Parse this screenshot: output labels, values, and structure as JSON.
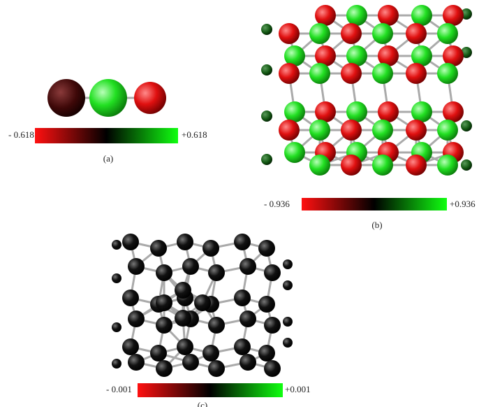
{
  "panels": [
    {
      "min_label": "- 0.618",
      "max_label": "+0.618",
      "caption": "(a)"
    },
    {
      "min_label": "- 0.936",
      "max_label": "+0.936",
      "caption": "(b)"
    },
    {
      "min_label": "- 0.001",
      "max_label": "+0.001",
      "caption": "(c)"
    }
  ]
}
